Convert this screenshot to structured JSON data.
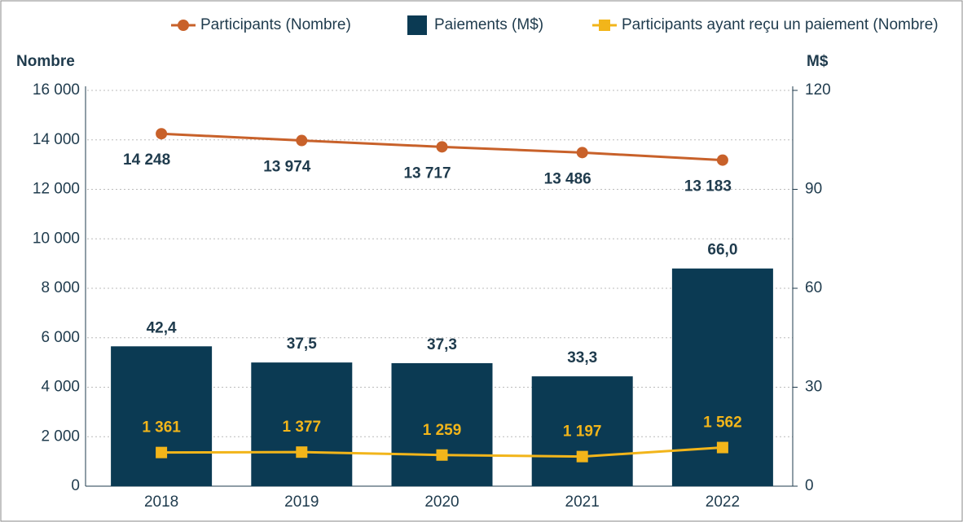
{
  "chart_data": {
    "type": "combo",
    "categories": [
      "2018",
      "2019",
      "2020",
      "2021",
      "2022"
    ],
    "ylabel": "Nombre",
    "y2label": "M$",
    "ylim": [
      0,
      16000
    ],
    "yticks": [
      0,
      {
        "value": 2000,
        "label": "2 000"
      },
      {
        "value": 4000,
        "label": "4 000"
      },
      {
        "value": 6000,
        "label": "6 000"
      },
      {
        "value": 8000,
        "label": "8 000"
      },
      {
        "value": 10000,
        "label": "10 000"
      },
      {
        "value": 12000,
        "label": "12 000"
      },
      {
        "value": 14000,
        "label": "14 000"
      },
      {
        "value": 16000,
        "label": "16 000"
      }
    ],
    "y2lim": [
      0,
      120
    ],
    "y2ticks": [
      0,
      30,
      60,
      90,
      120
    ],
    "grid": true,
    "series": [
      {
        "name": "Participants (Nombre)",
        "type": "line",
        "color": "#c8612a",
        "values": [
          14248,
          13974,
          13717,
          13486,
          13183
        ],
        "value_labels": [
          "14 248",
          "13 974",
          "13 717",
          "13 486",
          "13 183"
        ]
      },
      {
        "name": "Paiements (M$)",
        "type": "bar",
        "axis": "y2",
        "color": "#0b3a53",
        "values": [
          42.4,
          37.5,
          37.3,
          33.3,
          66.0
        ],
        "value_labels": [
          "42,4",
          "37,5",
          "37,3",
          "33,3",
          "66,0"
        ]
      },
      {
        "name": "Participants ayant reçu un paiement (Nombre)",
        "type": "line",
        "color": "#f2b51a",
        "values": [
          1361,
          1377,
          1259,
          1197,
          1562
        ],
        "value_labels": [
          "1 361",
          "1 377",
          "1 259",
          "1 197",
          "1 562"
        ]
      }
    ]
  }
}
